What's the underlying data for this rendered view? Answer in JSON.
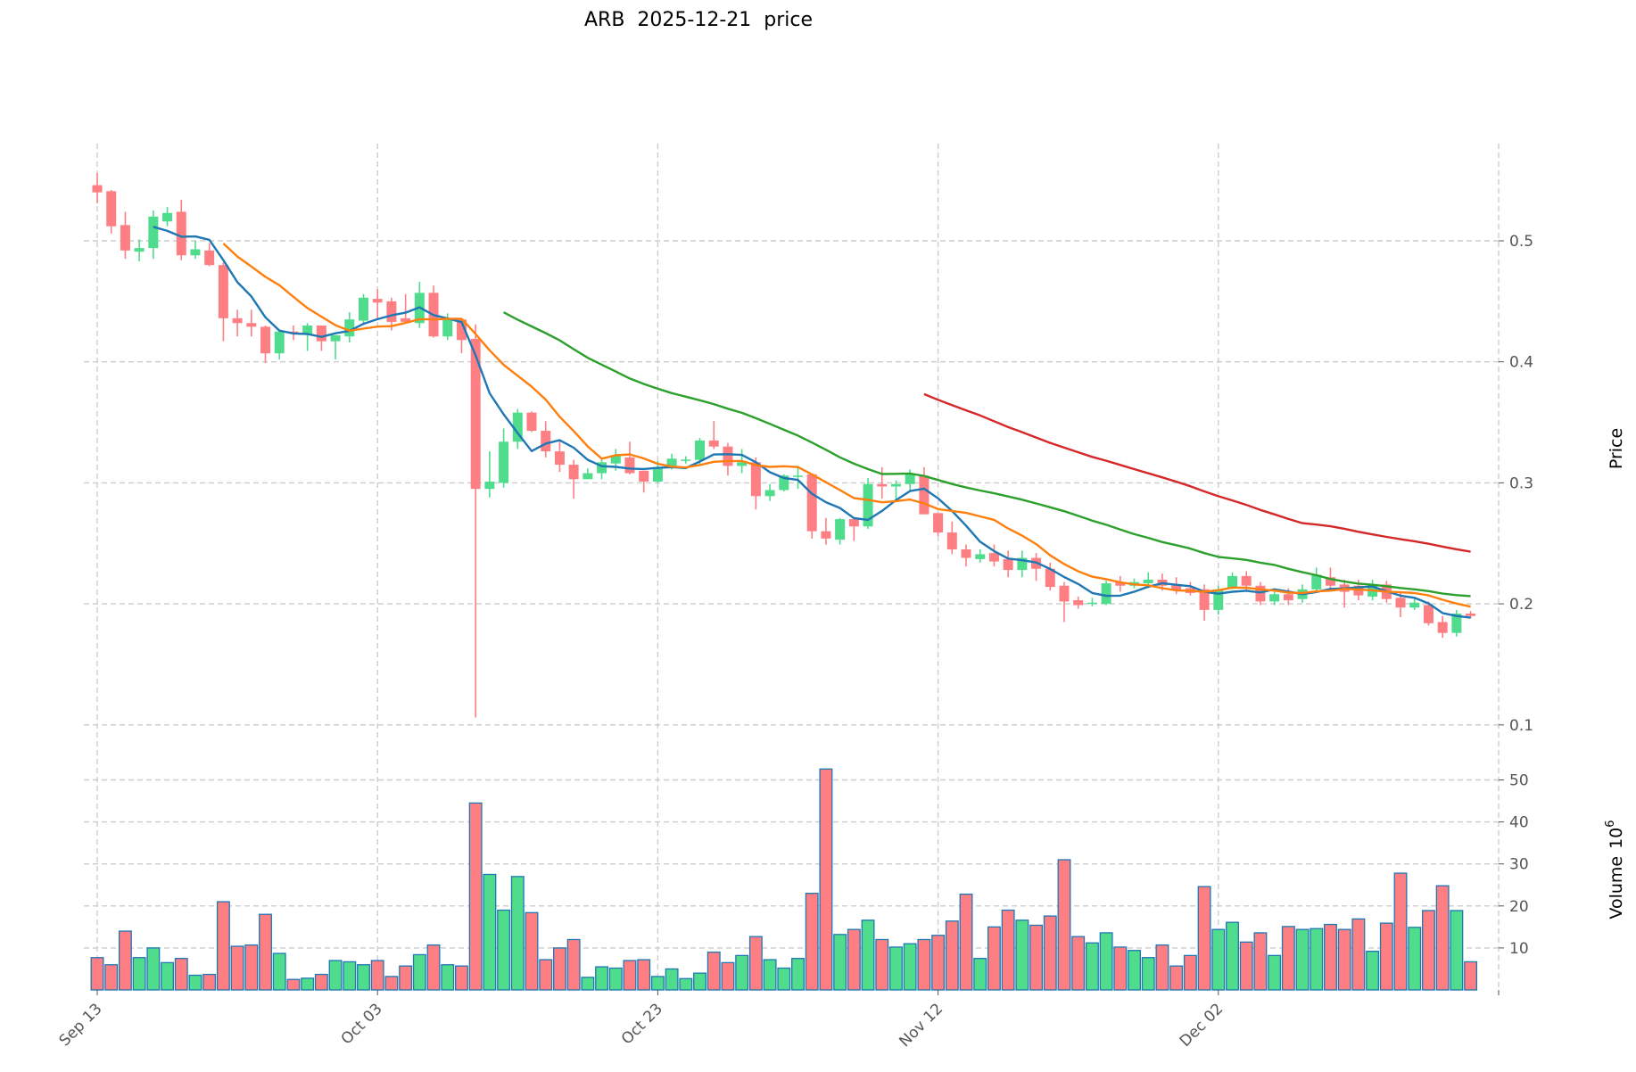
{
  "chart_data": {
    "type": "candlestick",
    "title": "ARB  2025-12-21  price",
    "ylabel": "Price",
    "volume_label": "Volume",
    "volume_exp": "10",
    "volume_exp_power": "6",
    "ylim": [
      0.07,
      0.58
    ],
    "volume_ylim": [
      0,
      55
    ],
    "grid": true,
    "price_ticks": [
      "0.1",
      "0.2",
      "0.3",
      "0.4",
      "0.5"
    ],
    "volume_ticks": [
      "10",
      "20",
      "30",
      "40",
      "50"
    ],
    "x_ticks": [
      {
        "label": "Sep 13",
        "index": 0
      },
      {
        "label": "Oct 03",
        "index": 20
      },
      {
        "label": "Oct 23",
        "index": 40
      },
      {
        "label": "Nov 12",
        "index": 60
      },
      {
        "label": "Dec 02",
        "index": 80
      }
    ],
    "start_date": "2025-09-13",
    "moving_averages": [
      {
        "period": 5,
        "color": "#1f77b4"
      },
      {
        "period": 10,
        "color": "#ff7f0e"
      },
      {
        "period": 30,
        "color": "#2ca02c"
      },
      {
        "period": 60,
        "color": "#d62728"
      }
    ],
    "colors": {
      "up": "#4fdc8c",
      "down": "#fd7f83",
      "volume_edge": "#1f77b4",
      "grid": "#cccccc"
    },
    "ohlc": [
      [
        0.546,
        0.556,
        0.531,
        0.54
      ],
      [
        0.541,
        0.542,
        0.506,
        0.512
      ],
      [
        0.513,
        0.524,
        0.485,
        0.492
      ],
      [
        0.491,
        0.501,
        0.483,
        0.494
      ],
      [
        0.494,
        0.525,
        0.485,
        0.52
      ],
      [
        0.516,
        0.528,
        0.512,
        0.523
      ],
      [
        0.524,
        0.534,
        0.484,
        0.488
      ],
      [
        0.488,
        0.5,
        0.485,
        0.493
      ],
      [
        0.492,
        0.498,
        0.479,
        0.48
      ],
      [
        0.48,
        0.482,
        0.417,
        0.436
      ],
      [
        0.436,
        0.443,
        0.421,
        0.432
      ],
      [
        0.432,
        0.443,
        0.421,
        0.429
      ],
      [
        0.429,
        0.43,
        0.399,
        0.407
      ],
      [
        0.407,
        0.426,
        0.402,
        0.425
      ],
      [
        0.425,
        0.43,
        0.418,
        0.424
      ],
      [
        0.423,
        0.432,
        0.409,
        0.43
      ],
      [
        0.43,
        0.43,
        0.409,
        0.417
      ],
      [
        0.417,
        0.422,
        0.402,
        0.422
      ],
      [
        0.421,
        0.441,
        0.416,
        0.435
      ],
      [
        0.434,
        0.456,
        0.431,
        0.453
      ],
      [
        0.452,
        0.46,
        0.436,
        0.449
      ],
      [
        0.45,
        0.453,
        0.426,
        0.433
      ],
      [
        0.436,
        0.456,
        0.432,
        0.433
      ],
      [
        0.432,
        0.466,
        0.428,
        0.457
      ],
      [
        0.457,
        0.463,
        0.42,
        0.421
      ],
      [
        0.421,
        0.44,
        0.418,
        0.435
      ],
      [
        0.435,
        0.435,
        0.407,
        0.418
      ],
      [
        0.419,
        0.431,
        0.106,
        0.295
      ],
      [
        0.295,
        0.326,
        0.288,
        0.301
      ],
      [
        0.3,
        0.345,
        0.296,
        0.334
      ],
      [
        0.334,
        0.361,
        0.328,
        0.358
      ],
      [
        0.358,
        0.359,
        0.342,
        0.343
      ],
      [
        0.343,
        0.351,
        0.321,
        0.326
      ],
      [
        0.326,
        0.335,
        0.309,
        0.315
      ],
      [
        0.315,
        0.319,
        0.287,
        0.303
      ],
      [
        0.303,
        0.312,
        0.303,
        0.308
      ],
      [
        0.308,
        0.32,
        0.303,
        0.317
      ],
      [
        0.316,
        0.328,
        0.31,
        0.323
      ],
      [
        0.321,
        0.334,
        0.307,
        0.308
      ],
      [
        0.31,
        0.31,
        0.292,
        0.301
      ],
      [
        0.301,
        0.318,
        0.3,
        0.313
      ],
      [
        0.312,
        0.324,
        0.311,
        0.32
      ],
      [
        0.319,
        0.322,
        0.316,
        0.3192
      ],
      [
        0.319,
        0.337,
        0.314,
        0.335
      ],
      [
        0.335,
        0.351,
        0.328,
        0.33
      ],
      [
        0.33,
        0.333,
        0.306,
        0.314
      ],
      [
        0.314,
        0.328,
        0.308,
        0.317
      ],
      [
        0.317,
        0.321,
        0.278,
        0.289
      ],
      [
        0.289,
        0.299,
        0.285,
        0.294
      ],
      [
        0.294,
        0.307,
        0.293,
        0.306
      ],
      [
        0.305,
        0.314,
        0.295,
        0.306
      ],
      [
        0.307,
        0.307,
        0.254,
        0.26
      ],
      [
        0.26,
        0.271,
        0.249,
        0.254
      ],
      [
        0.253,
        0.271,
        0.249,
        0.27
      ],
      [
        0.27,
        0.27,
        0.252,
        0.264
      ],
      [
        0.264,
        0.304,
        0.262,
        0.299
      ],
      [
        0.299,
        0.313,
        0.287,
        0.297
      ],
      [
        0.297,
        0.302,
        0.284,
        0.299
      ],
      [
        0.299,
        0.311,
        0.294,
        0.307
      ],
      [
        0.306,
        0.313,
        0.274,
        0.274
      ],
      [
        0.275,
        0.275,
        0.256,
        0.259
      ],
      [
        0.259,
        0.268,
        0.241,
        0.245
      ],
      [
        0.245,
        0.249,
        0.231,
        0.238
      ],
      [
        0.237,
        0.245,
        0.234,
        0.241
      ],
      [
        0.242,
        0.249,
        0.231,
        0.235
      ],
      [
        0.237,
        0.244,
        0.222,
        0.228
      ],
      [
        0.228,
        0.244,
        0.222,
        0.238
      ],
      [
        0.238,
        0.242,
        0.219,
        0.229
      ],
      [
        0.229,
        0.234,
        0.211,
        0.214
      ],
      [
        0.215,
        0.218,
        0.185,
        0.202
      ],
      [
        0.203,
        0.206,
        0.196,
        0.199
      ],
      [
        0.2,
        0.205,
        0.198,
        0.201
      ],
      [
        0.2,
        0.219,
        0.199,
        0.217
      ],
      [
        0.218,
        0.223,
        0.21,
        0.215
      ],
      [
        0.215,
        0.221,
        0.213,
        0.218
      ],
      [
        0.217,
        0.226,
        0.213,
        0.22
      ],
      [
        0.22,
        0.225,
        0.211,
        0.215
      ],
      [
        0.216,
        0.222,
        0.208,
        0.211
      ],
      [
        0.213,
        0.218,
        0.207,
        0.209
      ],
      [
        0.212,
        0.216,
        0.186,
        0.195
      ],
      [
        0.195,
        0.215,
        0.191,
        0.212
      ],
      [
        0.213,
        0.226,
        0.212,
        0.223
      ],
      [
        0.223,
        0.227,
        0.211,
        0.215
      ],
      [
        0.215,
        0.218,
        0.199,
        0.202
      ],
      [
        0.202,
        0.211,
        0.199,
        0.208
      ],
      [
        0.208,
        0.213,
        0.199,
        0.203
      ],
      [
        0.204,
        0.216,
        0.201,
        0.212
      ],
      [
        0.212,
        0.23,
        0.209,
        0.224
      ],
      [
        0.222,
        0.23,
        0.213,
        0.215
      ],
      [
        0.216,
        0.22,
        0.197,
        0.21
      ],
      [
        0.215,
        0.22,
        0.203,
        0.207
      ],
      [
        0.206,
        0.22,
        0.203,
        0.216
      ],
      [
        0.216,
        0.219,
        0.201,
        0.204
      ],
      [
        0.205,
        0.209,
        0.189,
        0.197
      ],
      [
        0.197,
        0.205,
        0.195,
        0.201
      ],
      [
        0.199,
        0.202,
        0.182,
        0.184
      ],
      [
        0.185,
        0.19,
        0.172,
        0.176
      ],
      [
        0.176,
        0.195,
        0.173,
        0.192
      ],
      [
        0.192,
        0.194,
        0.188,
        0.19
      ]
    ],
    "volume": [
      7.7,
      6,
      14,
      7.7,
      10,
      6.5,
      7.5,
      3.5,
      3.7,
      21,
      10.4,
      10.7,
      18,
      8.7,
      2.5,
      2.8,
      3.7,
      7,
      6.7,
      6,
      7,
      3.2,
      5.7,
      8.4,
      10.7,
      6,
      5.7,
      44.5,
      27.5,
      19,
      27,
      18.4,
      7.2,
      10,
      12,
      3,
      5.5,
      5.2,
      7,
      7.2,
      3.2,
      5,
      2.7,
      4,
      9,
      6.5,
      8.2,
      12.7,
      7.2,
      5.2,
      7.5,
      23,
      52.6,
      13.2,
      14.4,
      16.6,
      12,
      10.2,
      11,
      12,
      13,
      16.4,
      22.8,
      7.5,
      15,
      19,
      16.6,
      15.4,
      17.6,
      31,
      12.7,
      11.2,
      13.6,
      10.2,
      9.4,
      7.7,
      10.7,
      5.7,
      8.2,
      24.6,
      14.4,
      16.1,
      11.4,
      13.6,
      8.2,
      15.1,
      14.4,
      14.6,
      15.6,
      14.4,
      16.9,
      9.2,
      15.9,
      27.8,
      14.9,
      18.9,
      24.8,
      18.9,
      6.7
    ]
  }
}
